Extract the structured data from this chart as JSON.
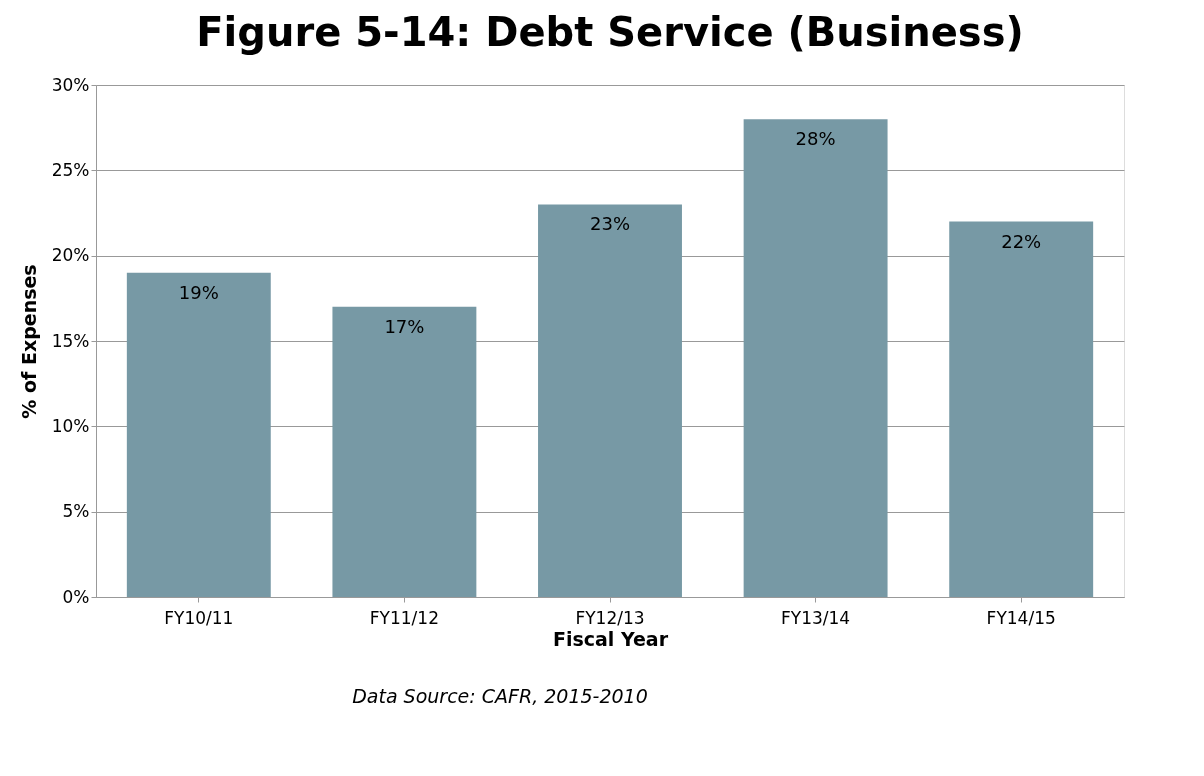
{
  "chart_data": {
    "type": "bar",
    "title": "Figure 5-14: Debt Service (Business)",
    "xlabel": "Fiscal Year",
    "ylabel": "% of Expenses",
    "categories": [
      "FY10/11",
      "FY11/12",
      "FY12/13",
      "FY13/14",
      "FY14/15"
    ],
    "values": [
      19,
      17,
      23,
      28,
      22
    ],
    "color": "#7799a5",
    "value_labels": [
      "19%",
      "17%",
      "23%",
      "28%",
      "22%"
    ],
    "ylim": [
      0,
      30
    ],
    "yticks": [
      {
        "value": 0,
        "label": "0%"
      },
      {
        "value": 5,
        "label": "5%"
      },
      {
        "value": 10,
        "label": "10%"
      },
      {
        "value": 15,
        "label": "15%"
      },
      {
        "value": 20,
        "label": "20%"
      },
      {
        "value": 25,
        "label": "25%"
      },
      {
        "value": 30,
        "label": "30%"
      }
    ],
    "grid": "y",
    "annotations": [
      "Data Source:  CAFR, 2015-2010"
    ]
  }
}
